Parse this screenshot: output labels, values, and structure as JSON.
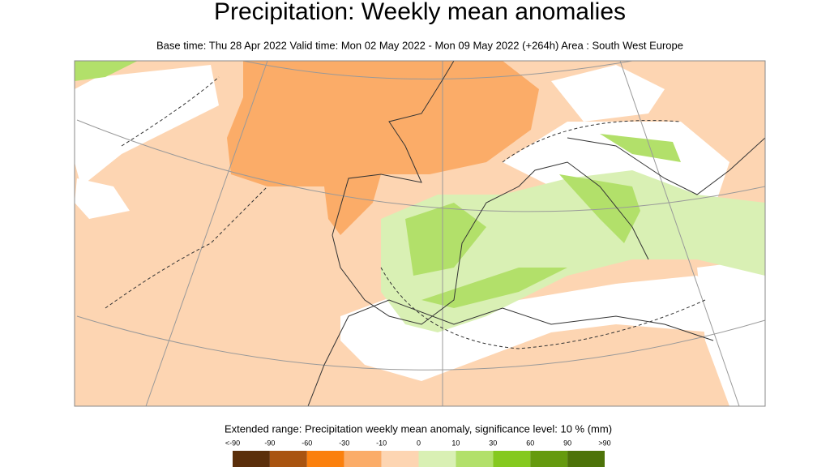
{
  "header": {
    "title": "Precipitation: Weekly mean anomalies",
    "subtitle": "Base time: Thu 28 Apr 2022 Valid time: Mon 02 May 2022 - Mon 09 May 2022 (+264h) Area : South West Europe"
  },
  "legend": {
    "title": "Extended range: Precipitation weekly mean anomaly, significance level: 10 % (mm)",
    "labels": [
      "<-90",
      "-90",
      "-60",
      "-30",
      "-10",
      "0",
      "10",
      "30",
      "60",
      "90",
      ">90"
    ],
    "colors": [
      "#5b2f0b",
      "#a95410",
      "#fb800d",
      "#fbac68",
      "#fdd5b2",
      "#d9f0b4",
      "#b2e06a",
      "#85c91e",
      "#659a0e",
      "#4d7309"
    ]
  }
}
